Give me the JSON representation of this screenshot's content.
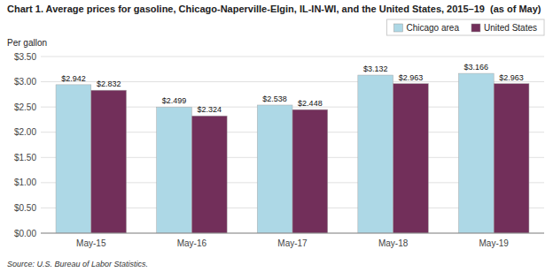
{
  "chart_data": {
    "type": "bar",
    "title": "Chart 1. Average prices for gasoline, Chicago-Naperville-Elgin, IL-IN-WI, and the United States, 2015–19  (as of May)",
    "y_label": "Per gallon",
    "source": "Source: U.S. Bureau of Labor Statistics.",
    "categories": [
      "May-15",
      "May-16",
      "May-17",
      "May-18",
      "May-19"
    ],
    "series": [
      {
        "name": "Chicago area",
        "color": "#ADD8E6",
        "values": [
          2.942,
          2.499,
          2.538,
          3.132,
          3.166
        ],
        "value_labels": [
          "$2.942",
          "$2.499",
          "$2.538",
          "$3.132",
          "$3.166"
        ]
      },
      {
        "name": "United States",
        "color": "#722F5A",
        "values": [
          2.832,
          2.324,
          2.448,
          2.963,
          2.963
        ],
        "value_labels": [
          "$2.832",
          "$2.324",
          "$2.448",
          "$2.963",
          "$2.963"
        ]
      }
    ],
    "ylim": [
      0,
      3.5
    ],
    "yticks": [
      {
        "value": 0.0,
        "label": "$0.00"
      },
      {
        "value": 0.5,
        "label": "$0.50"
      },
      {
        "value": 1.0,
        "label": "$1.00"
      },
      {
        "value": 1.5,
        "label": "$1.50"
      },
      {
        "value": 2.0,
        "label": "$2.00"
      },
      {
        "value": 2.5,
        "label": "$2.50"
      },
      {
        "value": 3.0,
        "label": "$3.00"
      },
      {
        "value": 3.5,
        "label": "$3.50"
      }
    ],
    "grid": true,
    "legend": "top-right",
    "data_labels": true
  }
}
